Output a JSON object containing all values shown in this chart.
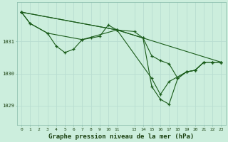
{
  "bg_color": "#cceedd",
  "grid_color": "#aaddcc",
  "line_color": "#1a5c1a",
  "xlabel": "Graphe pression niveau de la mer (hPa)",
  "xlabel_fontsize": 6.5,
  "ylabel_ticks": [
    1029,
    1030,
    1031
  ],
  "xlim": [
    -0.5,
    23.5
  ],
  "ylim": [
    1028.4,
    1032.2
  ],
  "xtick_positions": [
    0,
    1,
    2,
    3,
    4,
    5,
    6,
    7,
    8,
    9,
    10,
    11,
    13,
    14,
    15,
    16,
    17,
    18,
    19,
    20,
    21,
    22,
    23
  ],
  "xtick_labels": [
    "0",
    "1",
    "2",
    "3",
    "4",
    "5",
    "6",
    "7",
    "8",
    "9",
    "10",
    "11",
    "13",
    "14",
    "15",
    "16",
    "17",
    "18",
    "19",
    "20",
    "21",
    "22",
    "23"
  ],
  "series1": [
    [
      0,
      1031.9
    ],
    [
      1,
      1031.55
    ],
    [
      3,
      1031.25
    ],
    [
      4,
      1030.85
    ],
    [
      5,
      1030.65
    ],
    [
      6,
      1030.75
    ],
    [
      7,
      1031.05
    ],
    [
      8,
      1031.1
    ],
    [
      9,
      1031.15
    ],
    [
      10,
      1031.5
    ],
    [
      11,
      1031.35
    ],
    [
      13,
      1031.3
    ],
    [
      14,
      1031.1
    ],
    [
      15,
      1030.55
    ],
    [
      16,
      1030.4
    ],
    [
      17,
      1030.3
    ],
    [
      18,
      1029.85
    ],
    [
      19,
      1030.05
    ],
    [
      20,
      1030.1
    ],
    [
      21,
      1030.35
    ],
    [
      22,
      1030.35
    ],
    [
      23,
      1030.35
    ]
  ],
  "series2": [
    [
      0,
      1031.9
    ],
    [
      1,
      1031.55
    ],
    [
      3,
      1031.25
    ],
    [
      7,
      1031.05
    ],
    [
      11,
      1031.35
    ],
    [
      14,
      1031.1
    ],
    [
      15,
      1029.6
    ],
    [
      16,
      1029.2
    ],
    [
      17,
      1029.05
    ],
    [
      18,
      1029.85
    ],
    [
      19,
      1030.05
    ],
    [
      20,
      1030.1
    ],
    [
      21,
      1030.35
    ],
    [
      22,
      1030.35
    ],
    [
      23,
      1030.35
    ]
  ],
  "series3": [
    [
      0,
      1031.9
    ],
    [
      11,
      1031.35
    ],
    [
      23,
      1030.35
    ]
  ],
  "series4": [
    [
      0,
      1031.9
    ],
    [
      11,
      1031.35
    ],
    [
      15,
      1029.85
    ],
    [
      16,
      1029.35
    ],
    [
      17,
      1029.75
    ],
    [
      19,
      1030.05
    ],
    [
      20,
      1030.1
    ],
    [
      21,
      1030.35
    ],
    [
      22,
      1030.35
    ],
    [
      23,
      1030.35
    ]
  ]
}
